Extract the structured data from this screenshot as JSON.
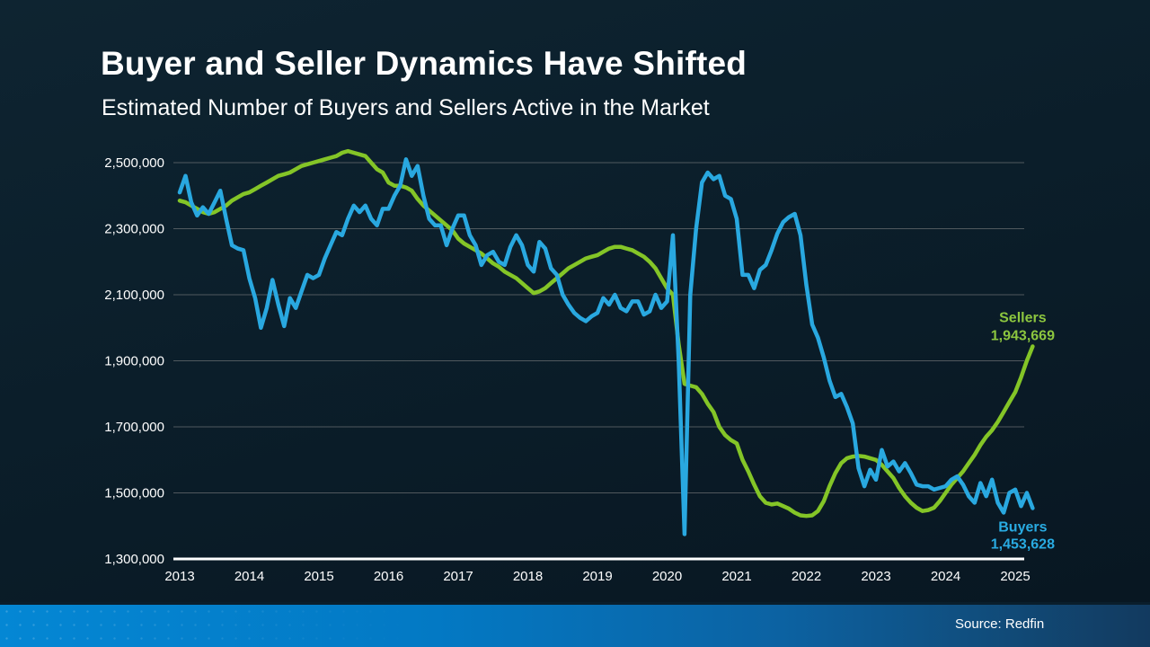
{
  "header": {
    "title": "Buyer and Seller Dynamics Have Shifted",
    "subtitle": "Estimated Number of Buyers and Sellers Active in the Market"
  },
  "footer": {
    "source": "Source: Redfin"
  },
  "colors": {
    "background": "#0b1e2a",
    "sellers_line": "#84c527",
    "sellers_label": "#8cc63f",
    "buyers_line": "#29a8e0",
    "buyers_label": "#29abe2",
    "gridline": "#8a8a8a",
    "axis_line": "#ffffff",
    "tick_text": "#ffffff",
    "footer_left": "#0487d4",
    "footer_right": "#123a5f"
  },
  "chart_data": {
    "type": "line",
    "title": "Buyer and Seller Dynamics Have Shifted",
    "subtitle": "Estimated Number of Buyers and Sellers Active in the Market",
    "xlabel": "",
    "ylabel": "",
    "grid": true,
    "legend_position": "inline-end-labels",
    "ylim": [
      1300000,
      2500000
    ],
    "x_start_year": 2013,
    "points_per_year": 12,
    "x_ticks": [
      {
        "label": "2013",
        "year": 2013
      },
      {
        "label": "2014",
        "year": 2014
      },
      {
        "label": "2015",
        "year": 2015
      },
      {
        "label": "2016",
        "year": 2016
      },
      {
        "label": "2017",
        "year": 2017
      },
      {
        "label": "2018",
        "year": 2018
      },
      {
        "label": "2019",
        "year": 2019
      },
      {
        "label": "2020",
        "year": 2020
      },
      {
        "label": "2021",
        "year": 2021
      },
      {
        "label": "2022",
        "year": 2022
      },
      {
        "label": "2023",
        "year": 2023
      },
      {
        "label": "2024",
        "year": 2024
      },
      {
        "label": "2025",
        "year": 2025
      }
    ],
    "y_ticks": [
      {
        "label": "2,500,000",
        "value": 2500000
      },
      {
        "label": "2,300,000",
        "value": 2300000
      },
      {
        "label": "2,100,000",
        "value": 2100000
      },
      {
        "label": "1,900,000",
        "value": 1900000
      },
      {
        "label": "1,700,000",
        "value": 1700000
      },
      {
        "label": "1,500,000",
        "value": 1500000
      },
      {
        "label": "1,300,000",
        "value": 1300000
      }
    ],
    "series": [
      {
        "name": "Sellers",
        "color": "#84c527",
        "label_color": "#8cc63f",
        "end_label_name": "Sellers",
        "end_label_value": "1,943,669",
        "end_value": 1943669,
        "label_position": "above",
        "values": [
          2385000,
          2380000,
          2370000,
          2360000,
          2350000,
          2345000,
          2350000,
          2360000,
          2370000,
          2385000,
          2395000,
          2405000,
          2410000,
          2420000,
          2430000,
          2440000,
          2450000,
          2460000,
          2465000,
          2470000,
          2480000,
          2490000,
          2495000,
          2500000,
          2505000,
          2510000,
          2515000,
          2520000,
          2530000,
          2535000,
          2530000,
          2525000,
          2520000,
          2500000,
          2480000,
          2470000,
          2440000,
          2430000,
          2430000,
          2425000,
          2415000,
          2390000,
          2370000,
          2355000,
          2340000,
          2325000,
          2310000,
          2295000,
          2270000,
          2255000,
          2245000,
          2235000,
          2225000,
          2210000,
          2195000,
          2185000,
          2170000,
          2160000,
          2150000,
          2135000,
          2120000,
          2105000,
          2110000,
          2120000,
          2135000,
          2150000,
          2165000,
          2180000,
          2190000,
          2200000,
          2210000,
          2215000,
          2220000,
          2230000,
          2240000,
          2245000,
          2245000,
          2240000,
          2235000,
          2225000,
          2215000,
          2200000,
          2180000,
          2150000,
          2120000,
          2100000,
          1950000,
          1830000,
          1825000,
          1820000,
          1800000,
          1770000,
          1745000,
          1700000,
          1675000,
          1660000,
          1650000,
          1600000,
          1565000,
          1525000,
          1490000,
          1470000,
          1465000,
          1468000,
          1460000,
          1452000,
          1440000,
          1432000,
          1430000,
          1432000,
          1445000,
          1475000,
          1520000,
          1560000,
          1590000,
          1605000,
          1610000,
          1612000,
          1610000,
          1605000,
          1600000,
          1585000,
          1565000,
          1545000,
          1515000,
          1490000,
          1470000,
          1455000,
          1445000,
          1448000,
          1455000,
          1475000,
          1500000,
          1525000,
          1545000,
          1565000,
          1590000,
          1615000,
          1645000,
          1670000,
          1690000,
          1715000,
          1745000,
          1775000,
          1805000,
          1850000,
          1900000,
          1943669
        ]
      },
      {
        "name": "Buyers",
        "color": "#29a8e0",
        "label_color": "#29abe2",
        "end_label_name": "Buyers",
        "end_label_value": "1,453,628",
        "end_value": 1453628,
        "label_position": "below",
        "values": [
          2410000,
          2460000,
          2380000,
          2340000,
          2365000,
          2345000,
          2380000,
          2415000,
          2330000,
          2250000,
          2240000,
          2235000,
          2150000,
          2090000,
          2000000,
          2060000,
          2145000,
          2070000,
          2005000,
          2090000,
          2060000,
          2110000,
          2160000,
          2150000,
          2160000,
          2210000,
          2250000,
          2290000,
          2280000,
          2330000,
          2370000,
          2350000,
          2370000,
          2330000,
          2310000,
          2360000,
          2360000,
          2400000,
          2430000,
          2510000,
          2460000,
          2490000,
          2400000,
          2330000,
          2310000,
          2310000,
          2250000,
          2300000,
          2340000,
          2340000,
          2280000,
          2250000,
          2190000,
          2220000,
          2230000,
          2200000,
          2190000,
          2245000,
          2280000,
          2250000,
          2190000,
          2170000,
          2260000,
          2240000,
          2180000,
          2160000,
          2100000,
          2070000,
          2045000,
          2030000,
          2020000,
          2035000,
          2045000,
          2090000,
          2070000,
          2100000,
          2060000,
          2050000,
          2080000,
          2080000,
          2040000,
          2050000,
          2100000,
          2060000,
          2080000,
          2280000,
          1900000,
          1375000,
          2100000,
          2300000,
          2440000,
          2470000,
          2450000,
          2460000,
          2400000,
          2390000,
          2330000,
          2160000,
          2160000,
          2120000,
          2175000,
          2190000,
          2235000,
          2285000,
          2320000,
          2335000,
          2345000,
          2280000,
          2130000,
          2010000,
          1970000,
          1910000,
          1840000,
          1790000,
          1800000,
          1760000,
          1710000,
          1575000,
          1520000,
          1570000,
          1540000,
          1630000,
          1580000,
          1595000,
          1565000,
          1590000,
          1560000,
          1525000,
          1520000,
          1520000,
          1510000,
          1515000,
          1520000,
          1540000,
          1550000,
          1525000,
          1490000,
          1470000,
          1530000,
          1490000,
          1540000,
          1470000,
          1440000,
          1500000,
          1510000,
          1460000,
          1500000,
          1453628
        ]
      }
    ]
  }
}
